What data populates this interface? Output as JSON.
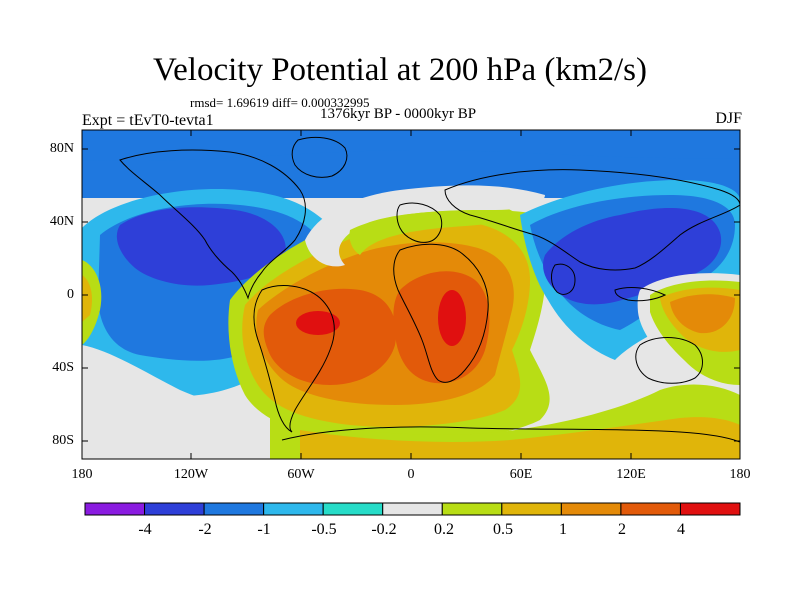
{
  "figure": {
    "title": "Velocity Potential at 200 hPa (km2/s)",
    "stats": "rmsd= 1.69619 diff= 0.000332995",
    "subtitle": "1376kyr BP - 0000kyr BP",
    "left_label": "Expt = tEvT0-tevta1",
    "right_label": "DJF"
  },
  "axes": {
    "lat_ticks": [
      "80N",
      "40N",
      "0",
      "40S",
      "80S"
    ],
    "lon_ticks": [
      "180",
      "120W",
      "60W",
      "0",
      "60E",
      "120E",
      "180"
    ],
    "lon_range": [
      -180,
      180
    ],
    "lat_range": [
      -90,
      90
    ]
  },
  "colorbar": {
    "labels": [
      "-4",
      "-2",
      "-1",
      "-0.5",
      "-0.2",
      "0.2",
      "0.5",
      "1",
      "2",
      "4"
    ],
    "colors": [
      "#8a1be0",
      "#2e3fd8",
      "#1f78df",
      "#2eb8ec",
      "#27dcc8",
      "#e6e6e6",
      "#b8dd15",
      "#e0b50a",
      "#e48a08",
      "#e25a0a",
      "#e01010"
    ]
  }
}
